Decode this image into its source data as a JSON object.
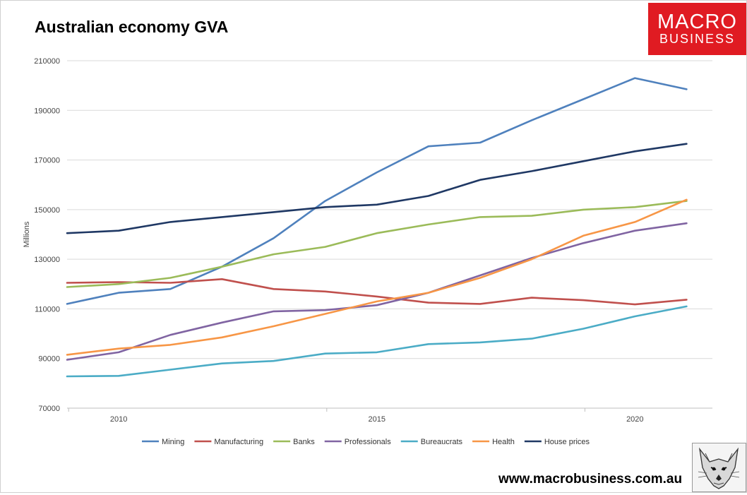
{
  "brand": {
    "logo_line1": "MACRO",
    "logo_line2": "BUSINESS",
    "logo_color": "#e01b22",
    "url": "www.macrobusiness.com.au",
    "mascot_icon": "fox-icon"
  },
  "chart_data": {
    "type": "line",
    "title": "Australian economy GVA",
    "xlabel": "",
    "ylabel": "Millions",
    "x": [
      2009,
      2010,
      2011,
      2012,
      2013,
      2014,
      2015,
      2016,
      2017,
      2018,
      2019,
      2020,
      2021
    ],
    "ylim": [
      70000,
      210000
    ],
    "yticks": [
      70000,
      90000,
      110000,
      130000,
      150000,
      170000,
      190000,
      210000
    ],
    "ytick_labels": [
      "70000",
      "90000",
      "110000",
      "130000",
      "150000",
      "170000",
      "190000",
      "210000"
    ],
    "xticks": [
      2010,
      2015,
      2020
    ],
    "xtick_labels": [
      "2010",
      "2015",
      "2020"
    ],
    "grid": "horizontal",
    "legend": "bottom",
    "series": [
      {
        "name": "Mining",
        "color": "#4f81bd",
        "values": [
          112000,
          116500,
          118000,
          127000,
          138500,
          153500,
          165000,
          175500,
          177000,
          186000,
          194500,
          203000,
          198500
        ]
      },
      {
        "name": "Manufacturing",
        "color": "#c0504d",
        "values": [
          120500,
          120800,
          120500,
          122000,
          118000,
          117000,
          115000,
          112500,
          112000,
          114500,
          113500,
          111800,
          113700
        ]
      },
      {
        "name": "Banks",
        "color": "#9bbb59",
        "values": [
          118800,
          120000,
          122500,
          127000,
          132000,
          135000,
          140500,
          144000,
          147000,
          147500,
          150000,
          151000,
          153500
        ]
      },
      {
        "name": "Professionals",
        "color": "#8064a2",
        "values": [
          89500,
          92500,
          99500,
          104500,
          109000,
          109500,
          111500,
          116500,
          123500,
          130500,
          136500,
          141500,
          144500
        ]
      },
      {
        "name": "Bureaucrats",
        "color": "#4bacc6",
        "values": [
          82800,
          83000,
          85500,
          88000,
          89000,
          92000,
          92500,
          95800,
          96500,
          98000,
          102000,
          107000,
          111000
        ]
      },
      {
        "name": "Health",
        "color": "#f79646",
        "values": [
          91500,
          94000,
          95500,
          98500,
          103000,
          108000,
          113000,
          116500,
          122500,
          130000,
          139500,
          145000,
          154000
        ]
      },
      {
        "name": "House prices",
        "color": "#1f3864",
        "values": [
          140500,
          141500,
          145000,
          147000,
          149000,
          151000,
          152000,
          155500,
          162000,
          165500,
          169500,
          173500,
          176500
        ]
      }
    ]
  }
}
